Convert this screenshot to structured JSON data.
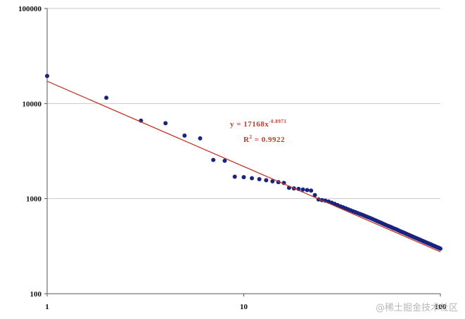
{
  "chart_data": {
    "type": "scatter",
    "x_scale": "log",
    "y_scale": "log",
    "xlim": [
      1,
      100
    ],
    "ylim": [
      100,
      100000
    ],
    "x_tick_labels": [
      "1",
      "10",
      "100"
    ],
    "y_tick_labels": [
      "100000",
      "10000",
      "1000",
      "100"
    ],
    "grid": "horizontal",
    "series": [
      {
        "points": [
          [
            1,
            19500
          ],
          [
            2,
            11500
          ],
          [
            3,
            6600
          ],
          [
            4,
            6200
          ],
          [
            5,
            4600
          ],
          [
            6,
            4300
          ],
          [
            7,
            2550
          ],
          [
            8,
            2500
          ],
          [
            9,
            1700
          ],
          [
            10,
            1680
          ],
          [
            11,
            1640
          ],
          [
            12,
            1600
          ],
          [
            13,
            1560
          ],
          [
            14,
            1520
          ],
          [
            15,
            1490
          ],
          [
            16,
            1460
          ],
          [
            17,
            1300
          ],
          [
            18,
            1280
          ],
          [
            19,
            1265
          ],
          [
            20,
            1245
          ],
          [
            21,
            1230
          ],
          [
            22,
            1215
          ],
          [
            23,
            1090
          ],
          [
            24,
            980
          ],
          [
            25,
            965
          ],
          [
            26,
            950
          ],
          [
            27,
            930
          ],
          [
            28,
            905
          ],
          [
            29,
            880
          ],
          [
            30,
            855
          ],
          [
            31,
            830
          ],
          [
            32,
            810
          ],
          [
            33,
            790
          ],
          [
            34,
            770
          ],
          [
            35,
            752
          ],
          [
            36,
            735
          ],
          [
            37,
            720
          ],
          [
            38,
            705
          ],
          [
            39,
            690
          ],
          [
            40,
            676
          ],
          [
            41,
            662
          ],
          [
            42,
            649
          ],
          [
            43,
            636
          ],
          [
            44,
            624
          ],
          [
            45,
            612
          ],
          [
            46,
            600
          ],
          [
            47,
            588
          ],
          [
            48,
            577
          ],
          [
            49,
            566
          ],
          [
            50,
            556
          ],
          [
            51,
            546
          ],
          [
            52,
            536
          ],
          [
            53,
            527
          ],
          [
            54,
            518
          ],
          [
            55,
            510
          ],
          [
            56,
            502
          ],
          [
            57,
            494
          ],
          [
            58,
            486
          ],
          [
            59,
            479
          ],
          [
            60,
            472
          ],
          [
            61,
            465
          ],
          [
            62,
            458
          ],
          [
            63,
            451
          ],
          [
            64,
            445
          ],
          [
            65,
            439
          ],
          [
            66,
            433
          ],
          [
            67,
            427
          ],
          [
            68,
            421
          ],
          [
            69,
            416
          ],
          [
            70,
            410
          ],
          [
            71,
            405
          ],
          [
            72,
            400
          ],
          [
            73,
            395
          ],
          [
            74,
            390
          ],
          [
            75,
            386
          ],
          [
            76,
            381
          ],
          [
            77,
            377
          ],
          [
            78,
            372
          ],
          [
            79,
            368
          ],
          [
            80,
            364
          ],
          [
            81,
            360
          ],
          [
            82,
            356
          ],
          [
            83,
            352
          ],
          [
            84,
            348
          ],
          [
            85,
            345
          ],
          [
            86,
            341
          ],
          [
            87,
            338
          ],
          [
            88,
            334
          ],
          [
            89,
            331
          ],
          [
            90,
            328
          ],
          [
            91,
            324
          ],
          [
            92,
            321
          ],
          [
            93,
            318
          ],
          [
            94,
            315
          ],
          [
            95,
            312
          ],
          [
            96,
            309
          ],
          [
            97,
            306
          ],
          [
            98,
            304
          ],
          [
            99,
            301
          ],
          [
            100,
            298
          ]
        ],
        "color": "#1a237e"
      }
    ],
    "trendline": {
      "type": "power",
      "coefficient": 17168,
      "exponent": -0.8971,
      "color": "#c0392b"
    },
    "equation_label": {
      "base": "y = 17168x",
      "exponent": "-0.8971",
      "r2_prefix": "R",
      "r2_sup": "2",
      "r2_value": " = 0.9922"
    }
  },
  "watermark": "@稀土掘金技术社区"
}
